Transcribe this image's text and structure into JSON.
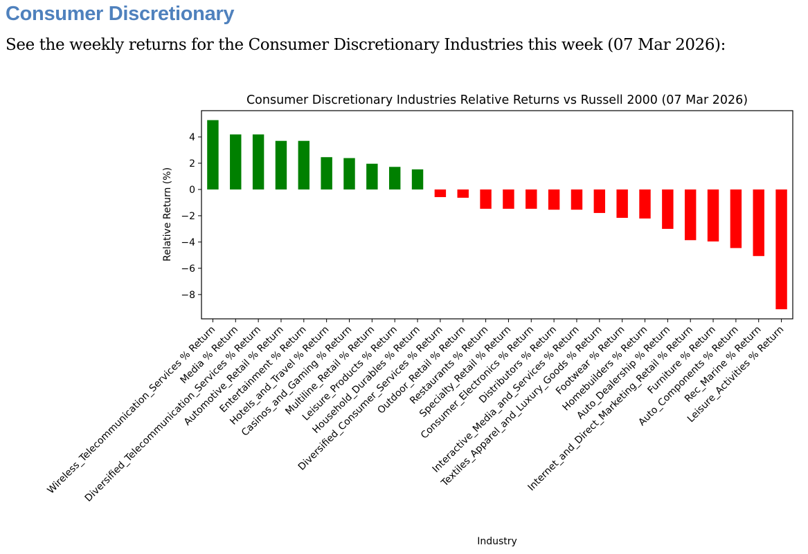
{
  "heading": "Consumer Discretionary",
  "intro": "See the weekly returns for the Consumer Discretionary Industries this week (07 Mar 2026):",
  "colors": {
    "positive": "#008000",
    "negative": "#ff0000",
    "heading": "#4f81bd"
  },
  "chart_data": {
    "type": "bar",
    "title": "Consumer Discretionary Industries Relative Returns vs Russell 2000 (07 Mar 2026)",
    "xlabel": "Industry",
    "ylabel": "Relative Return (%)",
    "ylim": [
      -9.85,
      6.0
    ],
    "yticks": [
      -8,
      -6,
      -4,
      -2,
      0,
      2,
      4
    ],
    "ytick_labels": [
      "−8",
      "−6",
      "−4",
      "−2",
      "0",
      "2",
      "4"
    ],
    "grid": false,
    "categories": [
      "Wireless_Telecommunication_Services % Return",
      "Media % Return",
      "Diversified_Telecommunication_Services % Return",
      "Automotive_Retail % Return",
      "Entertainment % Return",
      "Hotels_and_Travel % Return",
      "Casinos_and_Gaming % Return",
      "Multiline_Retail % Return",
      "Leisure_Products % Return",
      "Household_Durables % Return",
      "Diversified_Consumer_Services % Return",
      "Outdoor_Retail % Return",
      "Restaurants % Return",
      "Specialty_Retail % Return",
      "Consumer_Electronics % Return",
      "Distributors % Return",
      "Interactive_Media_and_Services % Return",
      "Textiles_Apparel_and_Luxury_Goods % Return",
      "Footwear % Return",
      "Homebuilders % Return",
      "Auto_Dealership % Return",
      "Internet_and_Direct_Marketing_Retail % Return",
      "Furniture % Return",
      "Auto_Components % Return",
      "Rec_Marine % Return",
      "Leisure_Activities % Return"
    ],
    "values": [
      5.28,
      4.19,
      4.19,
      3.7,
      3.7,
      2.46,
      2.39,
      1.96,
      1.72,
      1.53,
      -0.58,
      -0.63,
      -1.47,
      -1.47,
      -1.47,
      -1.54,
      -1.54,
      -1.79,
      -2.16,
      -2.21,
      -3.0,
      -3.86,
      -3.96,
      -4.46,
      -5.07,
      -9.12
    ]
  }
}
